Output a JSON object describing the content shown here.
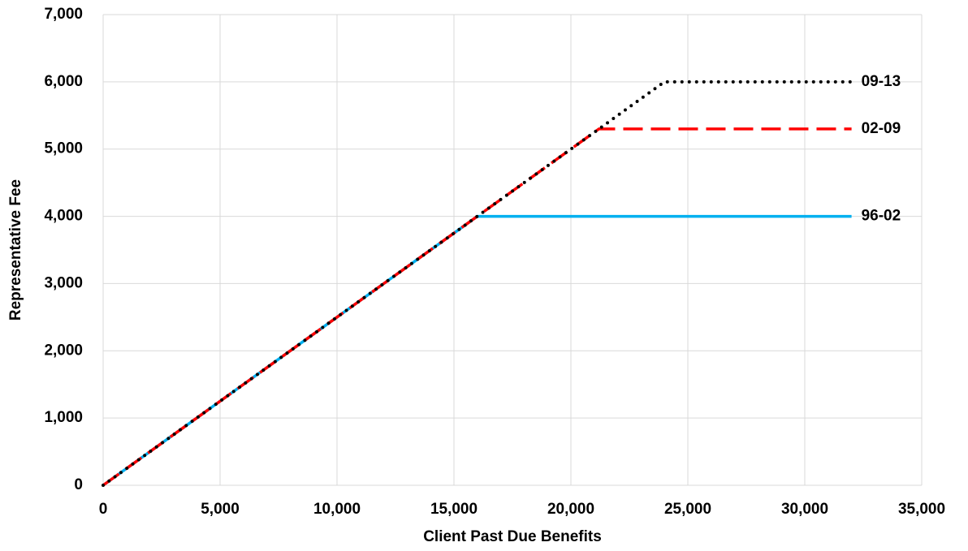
{
  "chart_data": {
    "type": "line",
    "xlabel": "Client Past Due Benefits",
    "ylabel": "Representative Fee",
    "xlim": [
      0,
      35000
    ],
    "xticks": [
      0,
      {
        "value": 5000,
        "label": "5,000"
      },
      {
        "value": 10000,
        "label": "10,000"
      },
      {
        "value": 15000,
        "label": "15,000"
      },
      {
        "value": 20000,
        "label": "20,000"
      },
      {
        "value": 25000,
        "label": "25,000"
      },
      {
        "value": 30000,
        "label": "30,000"
      },
      {
        "value": 35000,
        "label": "35,000"
      }
    ],
    "ylim": [
      0,
      7000
    ],
    "yticks": [
      0,
      {
        "value": 1000,
        "label": "1,000"
      },
      {
        "value": 2000,
        "label": "2,000"
      },
      {
        "value": 3000,
        "label": "3,000"
      },
      {
        "value": 4000,
        "label": "4,000"
      },
      {
        "value": 5000,
        "label": "5,000"
      },
      {
        "value": 6000,
        "label": "6,000"
      },
      {
        "value": 7000,
        "label": "7,000"
      }
    ],
    "grid": true,
    "series": [
      {
        "name": "96-02",
        "color": "#00b0f0",
        "style": "solid",
        "x": [
          0,
          16000,
          32000
        ],
        "values": [
          0,
          4000,
          4000
        ]
      },
      {
        "name": "02-09",
        "color": "#ff0000",
        "style": "dashed",
        "x": [
          0,
          21200,
          32000
        ],
        "values": [
          0,
          5300,
          5300
        ]
      },
      {
        "name": "09-13",
        "color": "#000000",
        "style": "dotted",
        "x": [
          0,
          24000,
          32000
        ],
        "values": [
          0,
          6000,
          6000
        ]
      }
    ]
  }
}
